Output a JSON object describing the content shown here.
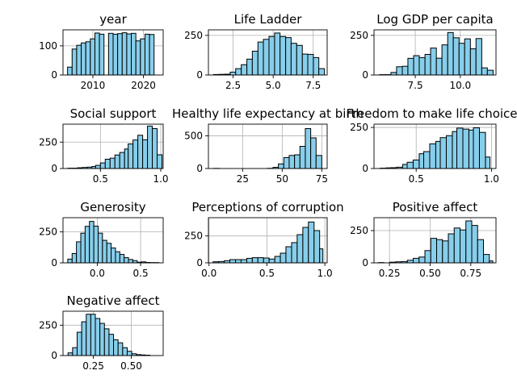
{
  "chart_data": [
    {
      "type": "bar",
      "title": "year",
      "xlim": [
        2004.1,
        2023.9
      ],
      "ylim": [
        0,
        155
      ],
      "xticks": [
        2010,
        2020
      ],
      "yticks": [
        0,
        100
      ],
      "bin_edges": [
        2005,
        2005.9,
        2006.8,
        2007.7,
        2008.6,
        2009.5,
        2010.4,
        2011.3,
        2012.2,
        2013.1,
        2014,
        2014.9,
        2015.8,
        2016.7,
        2017.6,
        2018.5,
        2019.4,
        2020.3,
        2021.2,
        2022.1,
        2023
      ],
      "values": [
        27,
        89,
        102,
        110,
        114,
        124,
        144,
        140,
        0,
        143,
        140,
        142,
        145,
        141,
        143,
        117,
        124,
        140,
        139,
        0
      ]
    },
    {
      "type": "bar",
      "title": "Life Ladder",
      "xlim": [
        0.96,
        8.37
      ],
      "ylim": [
        0,
        285
      ],
      "xticks": [
        2.5,
        5.0,
        7.5
      ],
      "yticks": [
        0,
        250
      ],
      "bin_edges": [
        1.28,
        1.63,
        1.97,
        2.32,
        2.66,
        3.01,
        3.36,
        3.7,
        4.05,
        4.39,
        4.74,
        5.09,
        5.43,
        5.78,
        6.12,
        6.47,
        6.82,
        7.16,
        7.51,
        7.85,
        8.2
      ],
      "values": [
        3,
        4,
        5,
        18,
        40,
        65,
        100,
        150,
        208,
        225,
        243,
        265,
        243,
        236,
        200,
        187,
        132,
        130,
        110,
        40
      ]
    },
    {
      "type": "bar",
      "title": "Log GDP per capita",
      "xlim": [
        5.21,
        11.98
      ],
      "ylim": [
        0,
        285
      ],
      "xticks": [
        7.5,
        10.0
      ],
      "yticks": [
        0,
        250
      ],
      "bin_edges": [
        5.52,
        5.83,
        6.15,
        6.46,
        6.78,
        7.09,
        7.41,
        7.72,
        8.04,
        8.35,
        8.67,
        8.98,
        9.3,
        9.61,
        9.93,
        10.24,
        10.56,
        10.87,
        11.19,
        11.5,
        11.82
      ],
      "values": [
        2,
        2,
        16,
        52,
        55,
        105,
        122,
        110,
        130,
        170,
        106,
        190,
        268,
        235,
        200,
        228,
        165,
        230,
        45,
        30
      ]
    },
    {
      "type": "bar",
      "title": "Social support",
      "xlim": [
        0.19,
        1.02
      ],
      "ylim": [
        0,
        420
      ],
      "xticks": [
        0.5,
        1.0
      ],
      "yticks": [
        0,
        250
      ],
      "bin_edges": [
        0.23,
        0.27,
        0.31,
        0.35,
        0.39,
        0.43,
        0.46,
        0.5,
        0.54,
        0.58,
        0.62,
        0.66,
        0.7,
        0.73,
        0.77,
        0.81,
        0.85,
        0.89,
        0.93,
        0.97,
        1.01
      ],
      "values": [
        3,
        3,
        7,
        10,
        13,
        19,
        30,
        53,
        88,
        98,
        128,
        152,
        185,
        233,
        270,
        315,
        272,
        402,
        378,
        130
      ]
    },
    {
      "type": "bar",
      "title": "Healthy life expectancy at birth",
      "xlim": [
        3.4,
        78.4
      ],
      "ylim": [
        0,
        680
      ],
      "xticks": [
        25,
        50,
        75
      ],
      "yticks": [
        0,
        500
      ],
      "bin_edges": [
        6.8,
        10.2,
        13.6,
        17,
        20.4,
        23.8,
        27.2,
        30.6,
        34,
        37.4,
        40.8,
        44.2,
        47.6,
        51,
        54.4,
        57.8,
        61.2,
        64.6,
        68,
        71.4,
        75
      ],
      "values": [
        2,
        0,
        0,
        0,
        0,
        0,
        0,
        0,
        0,
        0,
        3,
        18,
        70,
        168,
        200,
        210,
        340,
        612,
        470,
        200
      ]
    },
    {
      "type": "bar",
      "title": "Freedom to make life choices",
      "xlim": [
        0.22,
        1.03
      ],
      "ylim": [
        0,
        270
      ],
      "xticks": [
        0.5,
        1.0
      ],
      "yticks": [
        0,
        250
      ],
      "bin_edges": [
        0.26,
        0.3,
        0.33,
        0.37,
        0.41,
        0.44,
        0.48,
        0.52,
        0.55,
        0.59,
        0.63,
        0.66,
        0.7,
        0.74,
        0.77,
        0.81,
        0.85,
        0.88,
        0.92,
        0.96,
        0.99
      ],
      "values": [
        2,
        4,
        5,
        8,
        25,
        38,
        52,
        90,
        103,
        150,
        165,
        188,
        200,
        225,
        246,
        240,
        234,
        248,
        220,
        70
      ]
    },
    {
      "type": "bar",
      "title": "Generosity",
      "xlim": [
        -0.395,
        0.76
      ],
      "ylim": [
        0,
        365
      ],
      "xticks": [
        0.0,
        0.5
      ],
      "yticks": [
        0,
        250
      ],
      "bin_edges": [
        -0.34,
        -0.29,
        -0.24,
        -0.19,
        -0.14,
        -0.09,
        -0.04,
        0.01,
        0.06,
        0.11,
        0.16,
        0.21,
        0.26,
        0.31,
        0.36,
        0.41,
        0.46,
        0.51,
        0.56,
        0.61,
        0.71
      ],
      "values": [
        30,
        75,
        170,
        240,
        295,
        335,
        297,
        240,
        182,
        158,
        120,
        90,
        68,
        42,
        27,
        18,
        5,
        8,
        3,
        2
      ]
    },
    {
      "type": "bar",
      "title": "Perceptions of corruption",
      "xlim": [
        -0.005,
        1.02
      ],
      "ylim": [
        0,
        420
      ],
      "xticks": [
        0.0,
        0.5,
        1.0
      ],
      "yticks": [
        0,
        250
      ],
      "bin_edges": [
        0.035,
        0.083,
        0.132,
        0.18,
        0.229,
        0.277,
        0.326,
        0.374,
        0.422,
        0.471,
        0.519,
        0.568,
        0.616,
        0.664,
        0.713,
        0.761,
        0.81,
        0.858,
        0.907,
        0.955,
        0.983
      ],
      "values": [
        10,
        12,
        20,
        30,
        30,
        30,
        42,
        48,
        48,
        45,
        35,
        60,
        90,
        150,
        188,
        262,
        330,
        380,
        300,
        130
      ]
    },
    {
      "type": "bar",
      "title": "Positive affect",
      "xlim": [
        0.155,
        0.905
      ],
      "ylim": [
        0,
        350
      ],
      "xticks": [
        0.25,
        0.5,
        0.75
      ],
      "yticks": [
        0,
        250
      ],
      "bin_edges": [
        0.18,
        0.216,
        0.252,
        0.288,
        0.324,
        0.36,
        0.396,
        0.432,
        0.468,
        0.504,
        0.54,
        0.576,
        0.612,
        0.648,
        0.684,
        0.72,
        0.756,
        0.792,
        0.828,
        0.864,
        0.885
      ],
      "values": [
        2,
        0,
        5,
        8,
        10,
        20,
        35,
        45,
        95,
        190,
        180,
        170,
        225,
        270,
        255,
        325,
        290,
        180,
        65,
        15
      ]
    },
    {
      "type": "bar",
      "title": "Negative affect",
      "xlim": [
        0.05,
        0.71
      ],
      "ylim": [
        0,
        365
      ],
      "xticks": [
        0.25,
        0.5
      ],
      "yticks": [
        0,
        250
      ],
      "bin_edges": [
        0.083,
        0.113,
        0.143,
        0.173,
        0.203,
        0.233,
        0.263,
        0.293,
        0.323,
        0.353,
        0.383,
        0.413,
        0.443,
        0.473,
        0.503,
        0.533,
        0.563,
        0.593,
        0.623,
        0.653,
        0.683
      ],
      "values": [
        22,
        65,
        192,
        278,
        340,
        340,
        305,
        265,
        220,
        175,
        130,
        105,
        65,
        35,
        15,
        8,
        5,
        3,
        0,
        0
      ]
    }
  ]
}
